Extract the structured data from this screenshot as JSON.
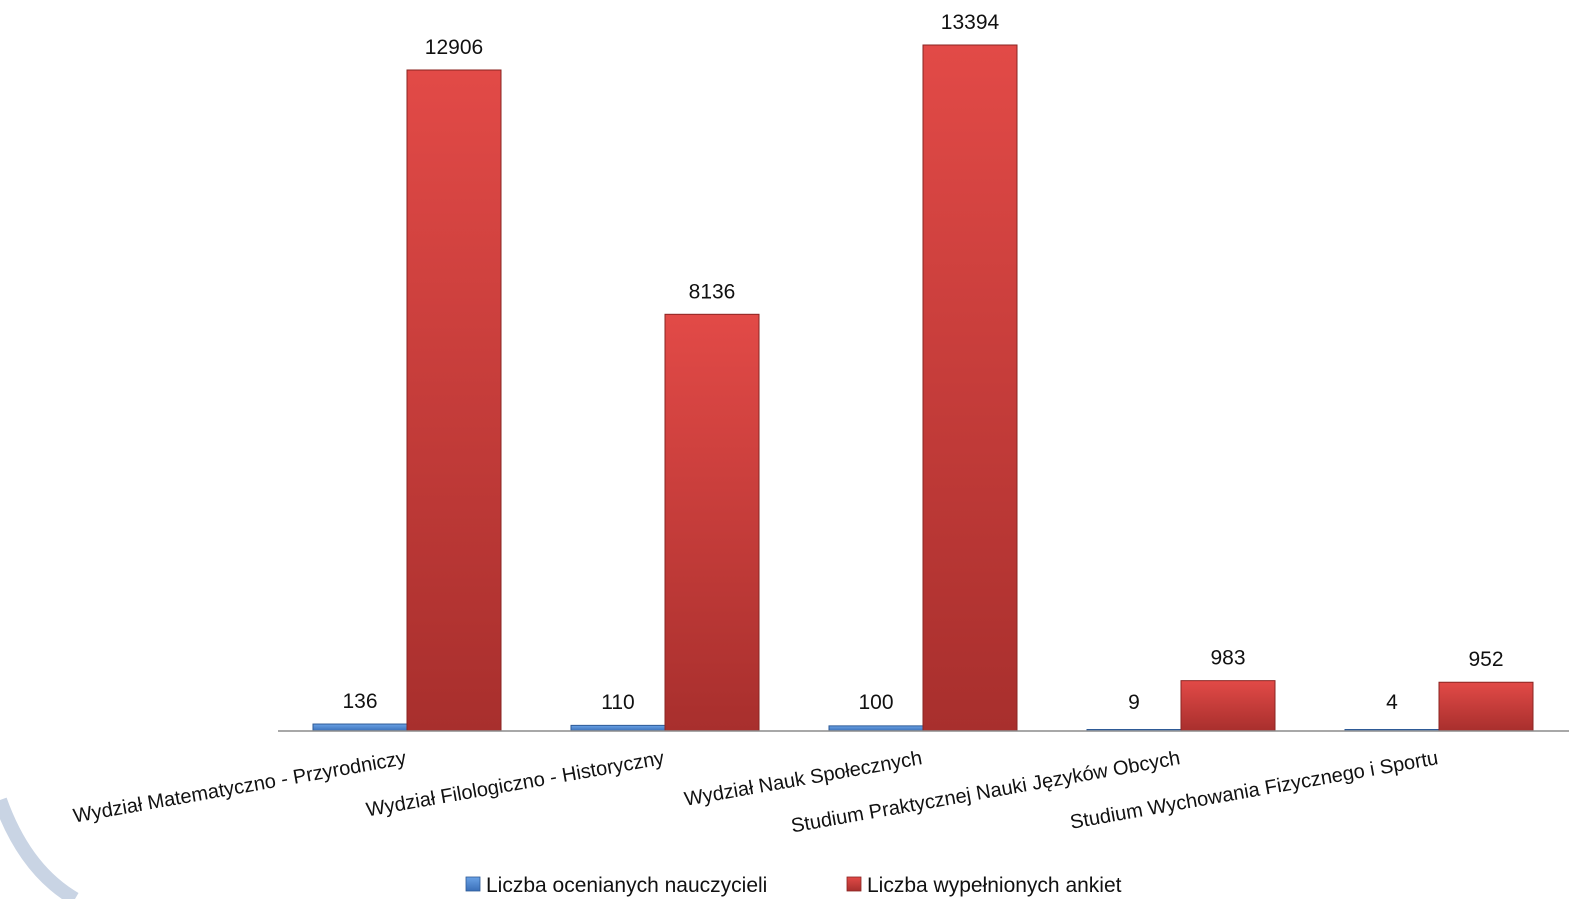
{
  "chart_data": {
    "type": "bar",
    "title": "",
    "xlabel": "",
    "ylabel": "",
    "ylim": [
      0,
      14000
    ],
    "grid": false,
    "legend_position": "bottom",
    "categories": [
      "Wydział Matematyczno - Przyrodniczy",
      "Wydział  Filologiczno - Historyczny",
      "Wydział Nauk Społecznych",
      "Studium Praktycznej Nauki Języków Obcych",
      "Studium Wychowania Fizycznego i Sportu"
    ],
    "series": [
      {
        "name": "Liczba ocenianych nauczycieli",
        "color": "#4a86d4",
        "values": [
          136,
          110,
          100,
          9,
          4
        ]
      },
      {
        "name": "Liczba wypełnionych ankiet",
        "color": "#d03c3a",
        "values": [
          12906,
          8136,
          13394,
          983,
          952
        ]
      }
    ]
  }
}
